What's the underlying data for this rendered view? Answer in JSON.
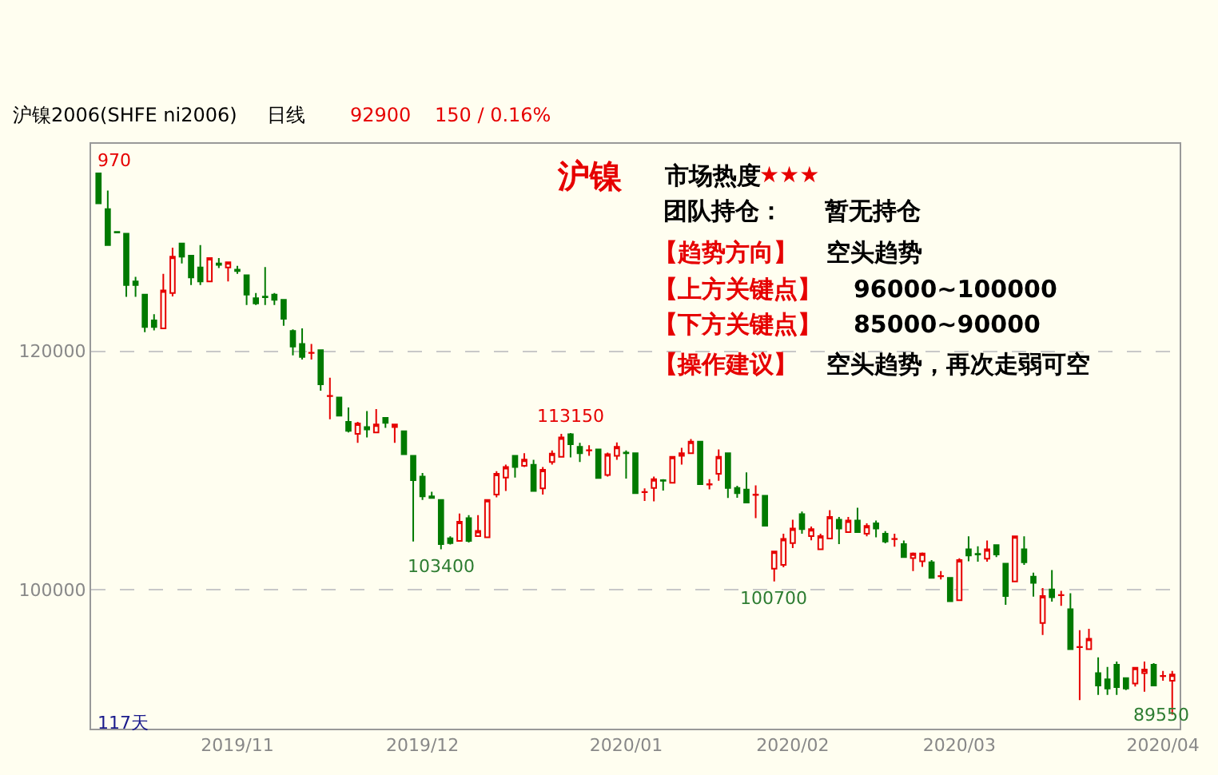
{
  "chart_data": {
    "type": "candlestick",
    "title": "沪镍2006(SHFE ni2006)",
    "categories": [
      null,
      null,
      null,
      null,
      null,
      null,
      null,
      null,
      null,
      null,
      null,
      null,
      null,
      null,
      null,
      "2019/11",
      null,
      null,
      null,
      null,
      null,
      null,
      null,
      null,
      null,
      null,
      null,
      null,
      null,
      null,
      null,
      null,
      null,
      null,
      null,
      "2019/12",
      null,
      null,
      null,
      null,
      null,
      null,
      null,
      null,
      null,
      null,
      null,
      null,
      null,
      null,
      null,
      null,
      null,
      null,
      null,
      null,
      null,
      "2020/01",
      null,
      null,
      null,
      null,
      null,
      null,
      null,
      null,
      null,
      null,
      null,
      null,
      null,
      null,
      null,
      null,
      null,
      "2020/02",
      null,
      null,
      null,
      null,
      null,
      null,
      null,
      null,
      null,
      null,
      null,
      null,
      null,
      null,
      null,
      null,
      null,
      "2020/03",
      null,
      null,
      null,
      null,
      null,
      null,
      null,
      null,
      null,
      null,
      null,
      null,
      null,
      null,
      null,
      null,
      null,
      null,
      null,
      null,
      null,
      "2020/04",
      null
    ],
    "ohlc": [
      [
        134900,
        134970,
        132400,
        132400
      ],
      [
        131900,
        133460,
        128900,
        128900
      ],
      [
        130000,
        130000,
        129950,
        129950
      ],
      [
        129850,
        129850,
        124560,
        125550
      ],
      [
        125840,
        126230,
        124560,
        125550
      ],
      [
        124750,
        124750,
        121600,
        122030
      ],
      [
        122580,
        123100,
        121740,
        122030
      ],
      [
        121910,
        126490,
        121910,
        125100
      ],
      [
        124870,
        128670,
        124600,
        127930
      ],
      [
        129020,
        129020,
        127360,
        127930
      ],
      [
        128010,
        128010,
        125550,
        126190
      ],
      [
        127020,
        128890,
        125550,
        125840
      ],
      [
        125840,
        127800,
        125840,
        127800
      ],
      [
        127360,
        127800,
        126970,
        127230
      ],
      [
        127020,
        127450,
        125840,
        127450
      ],
      [
        126840,
        127150,
        126490,
        126710
      ],
      [
        126360,
        126360,
        123880,
        124750
      ],
      [
        124440,
        124880,
        123880,
        124010
      ],
      [
        124570,
        127060,
        123880,
        124530
      ],
      [
        124750,
        124880,
        123880,
        124310
      ],
      [
        124310,
        124310,
        122130,
        122710
      ],
      [
        121700,
        121830,
        119650,
        120390
      ],
      [
        120610,
        121920,
        119300,
        119520
      ],
      [
        119850,
        120610,
        119300,
        119870
      ],
      [
        120090,
        120090,
        116690,
        117220
      ],
      [
        116240,
        117780,
        114290,
        116260
      ],
      [
        116120,
        116120,
        114600,
        114600
      ],
      [
        114080,
        115290,
        113190,
        113320
      ],
      [
        113070,
        114080,
        112330,
        113950
      ],
      [
        113640,
        114990,
        112770,
        113450
      ],
      [
        113200,
        115160,
        113200,
        113860
      ],
      [
        114420,
        114420,
        113580,
        113990
      ],
      [
        113640,
        113860,
        112330,
        113860
      ],
      [
        113290,
        113290,
        111370,
        111370
      ],
      [
        111240,
        111240,
        104050,
        109190
      ],
      [
        109500,
        109800,
        107540,
        107840
      ],
      [
        107840,
        108230,
        107710,
        107710
      ],
      [
        107540,
        107540,
        103400,
        103840
      ],
      [
        104320,
        104490,
        103800,
        103920
      ],
      [
        104100,
        106390,
        104100,
        105710
      ],
      [
        106020,
        106260,
        103970,
        104100
      ],
      [
        104510,
        106260,
        104510,
        104940
      ],
      [
        104410,
        107540,
        104410,
        107540
      ],
      [
        107980,
        109940,
        107760,
        109720
      ],
      [
        109410,
        110500,
        108280,
        110300
      ],
      [
        111240,
        111240,
        109410,
        110300
      ],
      [
        110390,
        111460,
        110300,
        110910
      ],
      [
        110480,
        110900,
        108280,
        108280
      ],
      [
        108500,
        110300,
        107980,
        110070
      ],
      [
        110720,
        111680,
        110500,
        111420
      ],
      [
        111150,
        113080,
        111150,
        112770
      ],
      [
        113050,
        113150,
        111100,
        112200
      ],
      [
        111990,
        112330,
        110720,
        111460
      ],
      [
        111680,
        112120,
        111240,
        111700
      ],
      [
        111770,
        111770,
        109370,
        109370
      ],
      [
        109630,
        111500,
        109500,
        111370
      ],
      [
        111240,
        112350,
        110900,
        111990
      ],
      [
        111500,
        111680,
        109330,
        111460
      ],
      [
        111460,
        111460,
        108110,
        108110
      ],
      [
        108190,
        108510,
        107460,
        108200
      ],
      [
        108540,
        109500,
        107410,
        109280
      ],
      [
        109200,
        109280,
        108330,
        109150
      ],
      [
        108980,
        111150,
        108980,
        111150
      ],
      [
        111240,
        111900,
        110500,
        111460
      ],
      [
        111460,
        112640,
        111460,
        112420
      ],
      [
        112420,
        112420,
        108850,
        108850
      ],
      [
        108830,
        109280,
        108420,
        108850
      ],
      [
        109720,
        111770,
        109150,
        111150
      ],
      [
        111460,
        111460,
        107700,
        108540
      ],
      [
        108540,
        108730,
        107720,
        108110
      ],
      [
        108410,
        109850,
        107320,
        107320
      ],
      [
        107960,
        108760,
        106020,
        107980
      ],
      [
        107890,
        107890,
        105370,
        105370
      ],
      [
        101770,
        103220,
        100700,
        103220
      ],
      [
        102100,
        104710,
        101900,
        104280
      ],
      [
        103920,
        105880,
        103500,
        105140
      ],
      [
        106340,
        106560,
        104710,
        105090
      ],
      [
        104510,
        105310,
        104160,
        105090
      ],
      [
        103400,
        104710,
        103400,
        104510
      ],
      [
        104310,
        106690,
        104310,
        106110
      ],
      [
        105880,
        106110,
        103830,
        105140
      ],
      [
        104840,
        106110,
        104840,
        105810
      ],
      [
        105810,
        106890,
        104840,
        104840
      ],
      [
        104710,
        105580,
        104490,
        105360
      ],
      [
        105580,
        105810,
        104400,
        105140
      ],
      [
        104710,
        104930,
        103900,
        104050
      ],
      [
        104250,
        104710,
        103620,
        104270
      ],
      [
        103830,
        104140,
        102750,
        102750
      ],
      [
        102660,
        103140,
        101570,
        103050
      ],
      [
        102400,
        103140,
        101920,
        103050
      ],
      [
        102320,
        102500,
        101010,
        101010
      ],
      [
        101140,
        101570,
        100880,
        101150
      ],
      [
        101010,
        101010,
        99050,
        99050
      ],
      [
        99140,
        102640,
        99140,
        102490
      ],
      [
        103400,
        104490,
        102400,
        102880
      ],
      [
        103010,
        103660,
        102360,
        102970
      ],
      [
        102620,
        104140,
        102360,
        103400
      ],
      [
        103750,
        103750,
        102750,
        102970
      ],
      [
        102190,
        102190,
        98750,
        99490
      ],
      [
        100700,
        104490,
        100700,
        104490
      ],
      [
        103400,
        104490,
        102100,
        102320
      ],
      [
        101110,
        101440,
        99440,
        100590
      ],
      [
        97220,
        100150,
        96220,
        99490
      ],
      [
        100040,
        101660,
        99010,
        99380
      ],
      [
        99550,
        99920,
        98670,
        99570
      ],
      [
        98380,
        99710,
        95030,
        95030
      ],
      [
        95200,
        96620,
        90770,
        95220
      ],
      [
        95030,
        96740,
        94990,
        95900
      ],
      [
        93030,
        94340,
        91200,
        91990
      ],
      [
        92510,
        93550,
        91200,
        91730
      ],
      [
        93730,
        93990,
        91200,
        91860
      ],
      [
        92600,
        92600,
        91600,
        91730
      ],
      [
        92160,
        93470,
        91900,
        93470
      ],
      [
        93030,
        93990,
        91460,
        93330
      ],
      [
        93730,
        93860,
        91990,
        91990
      ],
      [
        92770,
        93210,
        92380,
        92790
      ],
      [
        92380,
        93210,
        89550,
        92900
      ]
    ],
    "ylim": [
      88370,
      137380
    ],
    "yticks": [
      100000,
      120000
    ],
    "grid": "y",
    "annotations": [
      "沪镍",
      "市场热度",
      "★★★",
      "团队持仓：",
      "暂无持仓",
      "【趋势方向】",
      "空头趋势",
      "【上方关键点】",
      "96000~100000",
      "【下方关键点】",
      "85000~90000",
      "【操作建议】",
      "空头趋势，再次走弱可空",
      "日线",
      "92900",
      "150 / 0.16%",
      "117天",
      "970",
      "89550",
      {
        "text": "113150",
        "y": 113150
      },
      {
        "text": "103400",
        "y": 103400
      },
      {
        "text": "100700",
        "y": 100700
      }
    ]
  }
}
